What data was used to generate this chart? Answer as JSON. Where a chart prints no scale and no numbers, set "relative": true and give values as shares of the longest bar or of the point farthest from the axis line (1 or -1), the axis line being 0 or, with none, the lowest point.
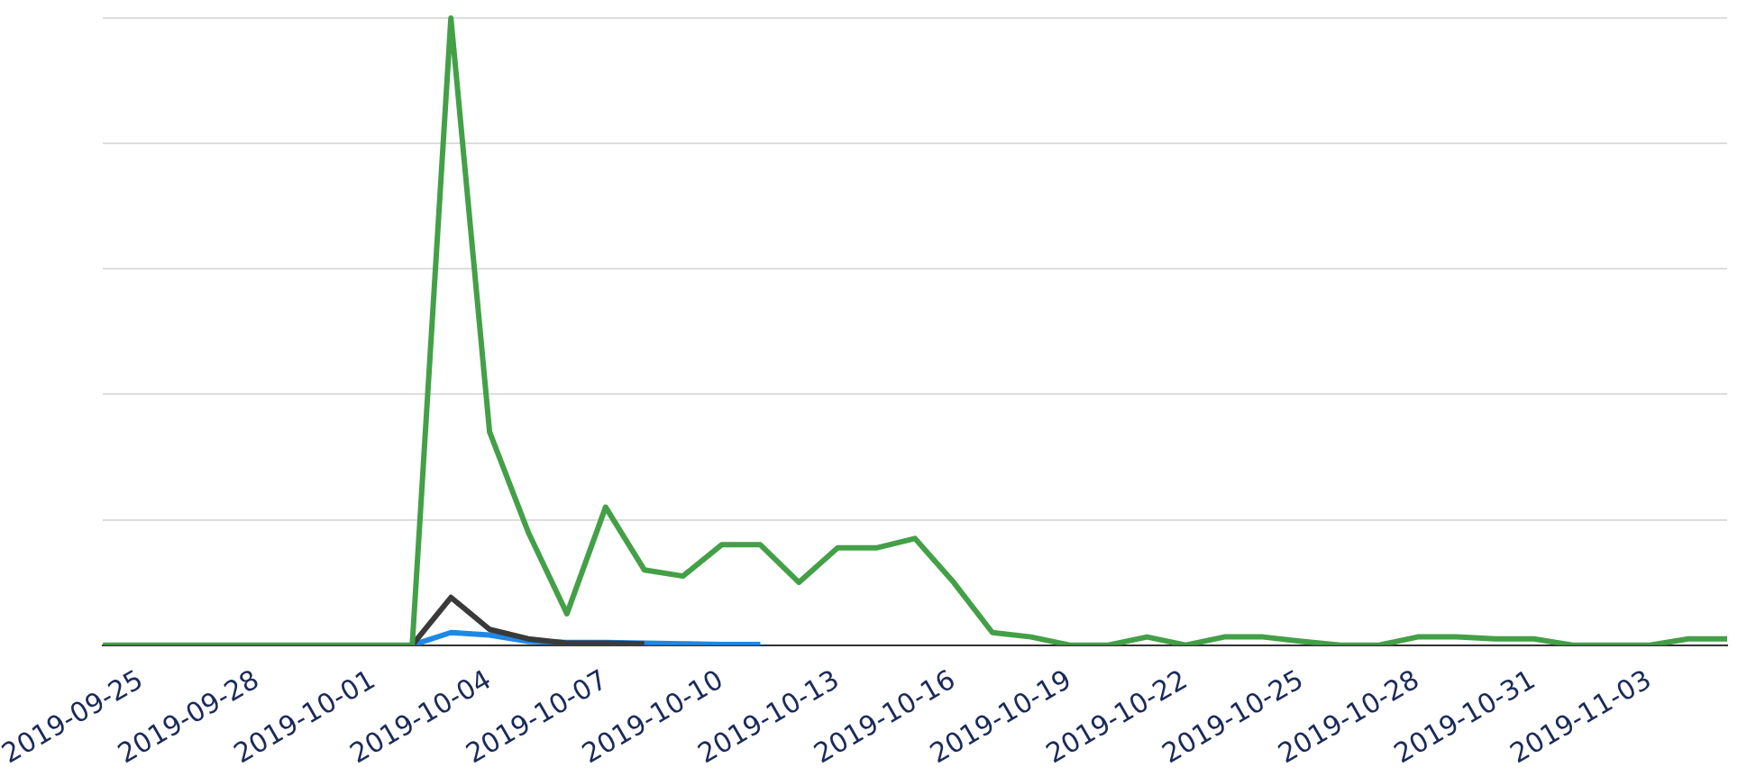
{
  "chart_data": {
    "type": "line",
    "relative": true,
    "grid": "y",
    "legend": false,
    "marker": "none",
    "line_style": "solid",
    "x": [
      "2019-09-24",
      "2019-09-25",
      "2019-09-26",
      "2019-09-27",
      "2019-09-28",
      "2019-09-29",
      "2019-09-30",
      "2019-10-01",
      "2019-10-02",
      "2019-10-03",
      "2019-10-04",
      "2019-10-05",
      "2019-10-06",
      "2019-10-07",
      "2019-10-08",
      "2019-10-09",
      "2019-10-10",
      "2019-10-11",
      "2019-10-12",
      "2019-10-13",
      "2019-10-14",
      "2019-10-15",
      "2019-10-16",
      "2019-10-17",
      "2019-10-18",
      "2019-10-19",
      "2019-10-20",
      "2019-10-21",
      "2019-10-22",
      "2019-10-23",
      "2019-10-24",
      "2019-10-25",
      "2019-10-26",
      "2019-10-27",
      "2019-10-28",
      "2019-10-29",
      "2019-10-30",
      "2019-10-31",
      "2019-11-01",
      "2019-11-02",
      "2019-11-03",
      "2019-11-04",
      "2019-11-05"
    ],
    "xlim": [
      "2019-09-24",
      "2019-11-05"
    ],
    "xticks": [
      {
        "value": "2019-09-25",
        "label": "2019-09-25"
      },
      {
        "value": "2019-09-28",
        "label": "2019-09-28"
      },
      {
        "value": "2019-10-01",
        "label": "2019-10-01"
      },
      {
        "value": "2019-10-04",
        "label": "2019-10-04"
      },
      {
        "value": "2019-10-07",
        "label": "2019-10-07"
      },
      {
        "value": "2019-10-10",
        "label": "2019-10-10"
      },
      {
        "value": "2019-10-13",
        "label": "2019-10-13"
      },
      {
        "value": "2019-10-16",
        "label": "2019-10-16"
      },
      {
        "value": "2019-10-19",
        "label": "2019-10-19"
      },
      {
        "value": "2019-10-22",
        "label": "2019-10-22"
      },
      {
        "value": "2019-10-25",
        "label": "2019-10-25"
      },
      {
        "value": "2019-10-28",
        "label": "2019-10-28"
      },
      {
        "value": "2019-10-31",
        "label": "2019-10-31"
      },
      {
        "value": "2019-11-03",
        "label": "2019-11-03"
      }
    ],
    "series": [
      {
        "color": "#43a047",
        "values": [
          0,
          0,
          0,
          0,
          0,
          0,
          0,
          0,
          0,
          1,
          0.34,
          0.18,
          0.05,
          0.22,
          0.12,
          0.11,
          0.16,
          0.16,
          0.1,
          0.155,
          0.155,
          0.17,
          0.1,
          0.02,
          0.013,
          0,
          0,
          0.013,
          0,
          0.013,
          0.013,
          0.006,
          0,
          0,
          0.013,
          0.013,
          0.01,
          0.01,
          0,
          0,
          0,
          0.01,
          0.01
        ]
      },
      {
        "color": "#3a3a3a",
        "values": [
          null,
          null,
          null,
          null,
          null,
          null,
          null,
          null,
          0,
          0.076,
          0.025,
          0.01,
          0.003,
          0.003,
          0.002,
          null,
          null,
          null,
          null,
          null,
          null,
          null,
          null,
          null,
          null,
          null,
          null,
          null,
          null,
          null,
          null,
          null,
          null,
          null,
          null,
          null,
          null,
          null,
          null,
          null,
          null,
          null,
          null
        ]
      },
      {
        "color": "#1e88e5",
        "values": [
          null,
          null,
          null,
          null,
          null,
          null,
          null,
          null,
          0,
          0.02,
          0.016,
          0.006,
          0.004,
          0.004,
          0.003,
          0.002,
          0.001,
          0.001,
          null,
          null,
          null,
          null,
          null,
          null,
          null,
          null,
          null,
          null,
          null,
          null,
          null,
          null,
          null,
          null,
          null,
          null,
          null,
          null,
          null,
          null,
          null,
          null,
          null
        ]
      }
    ]
  }
}
